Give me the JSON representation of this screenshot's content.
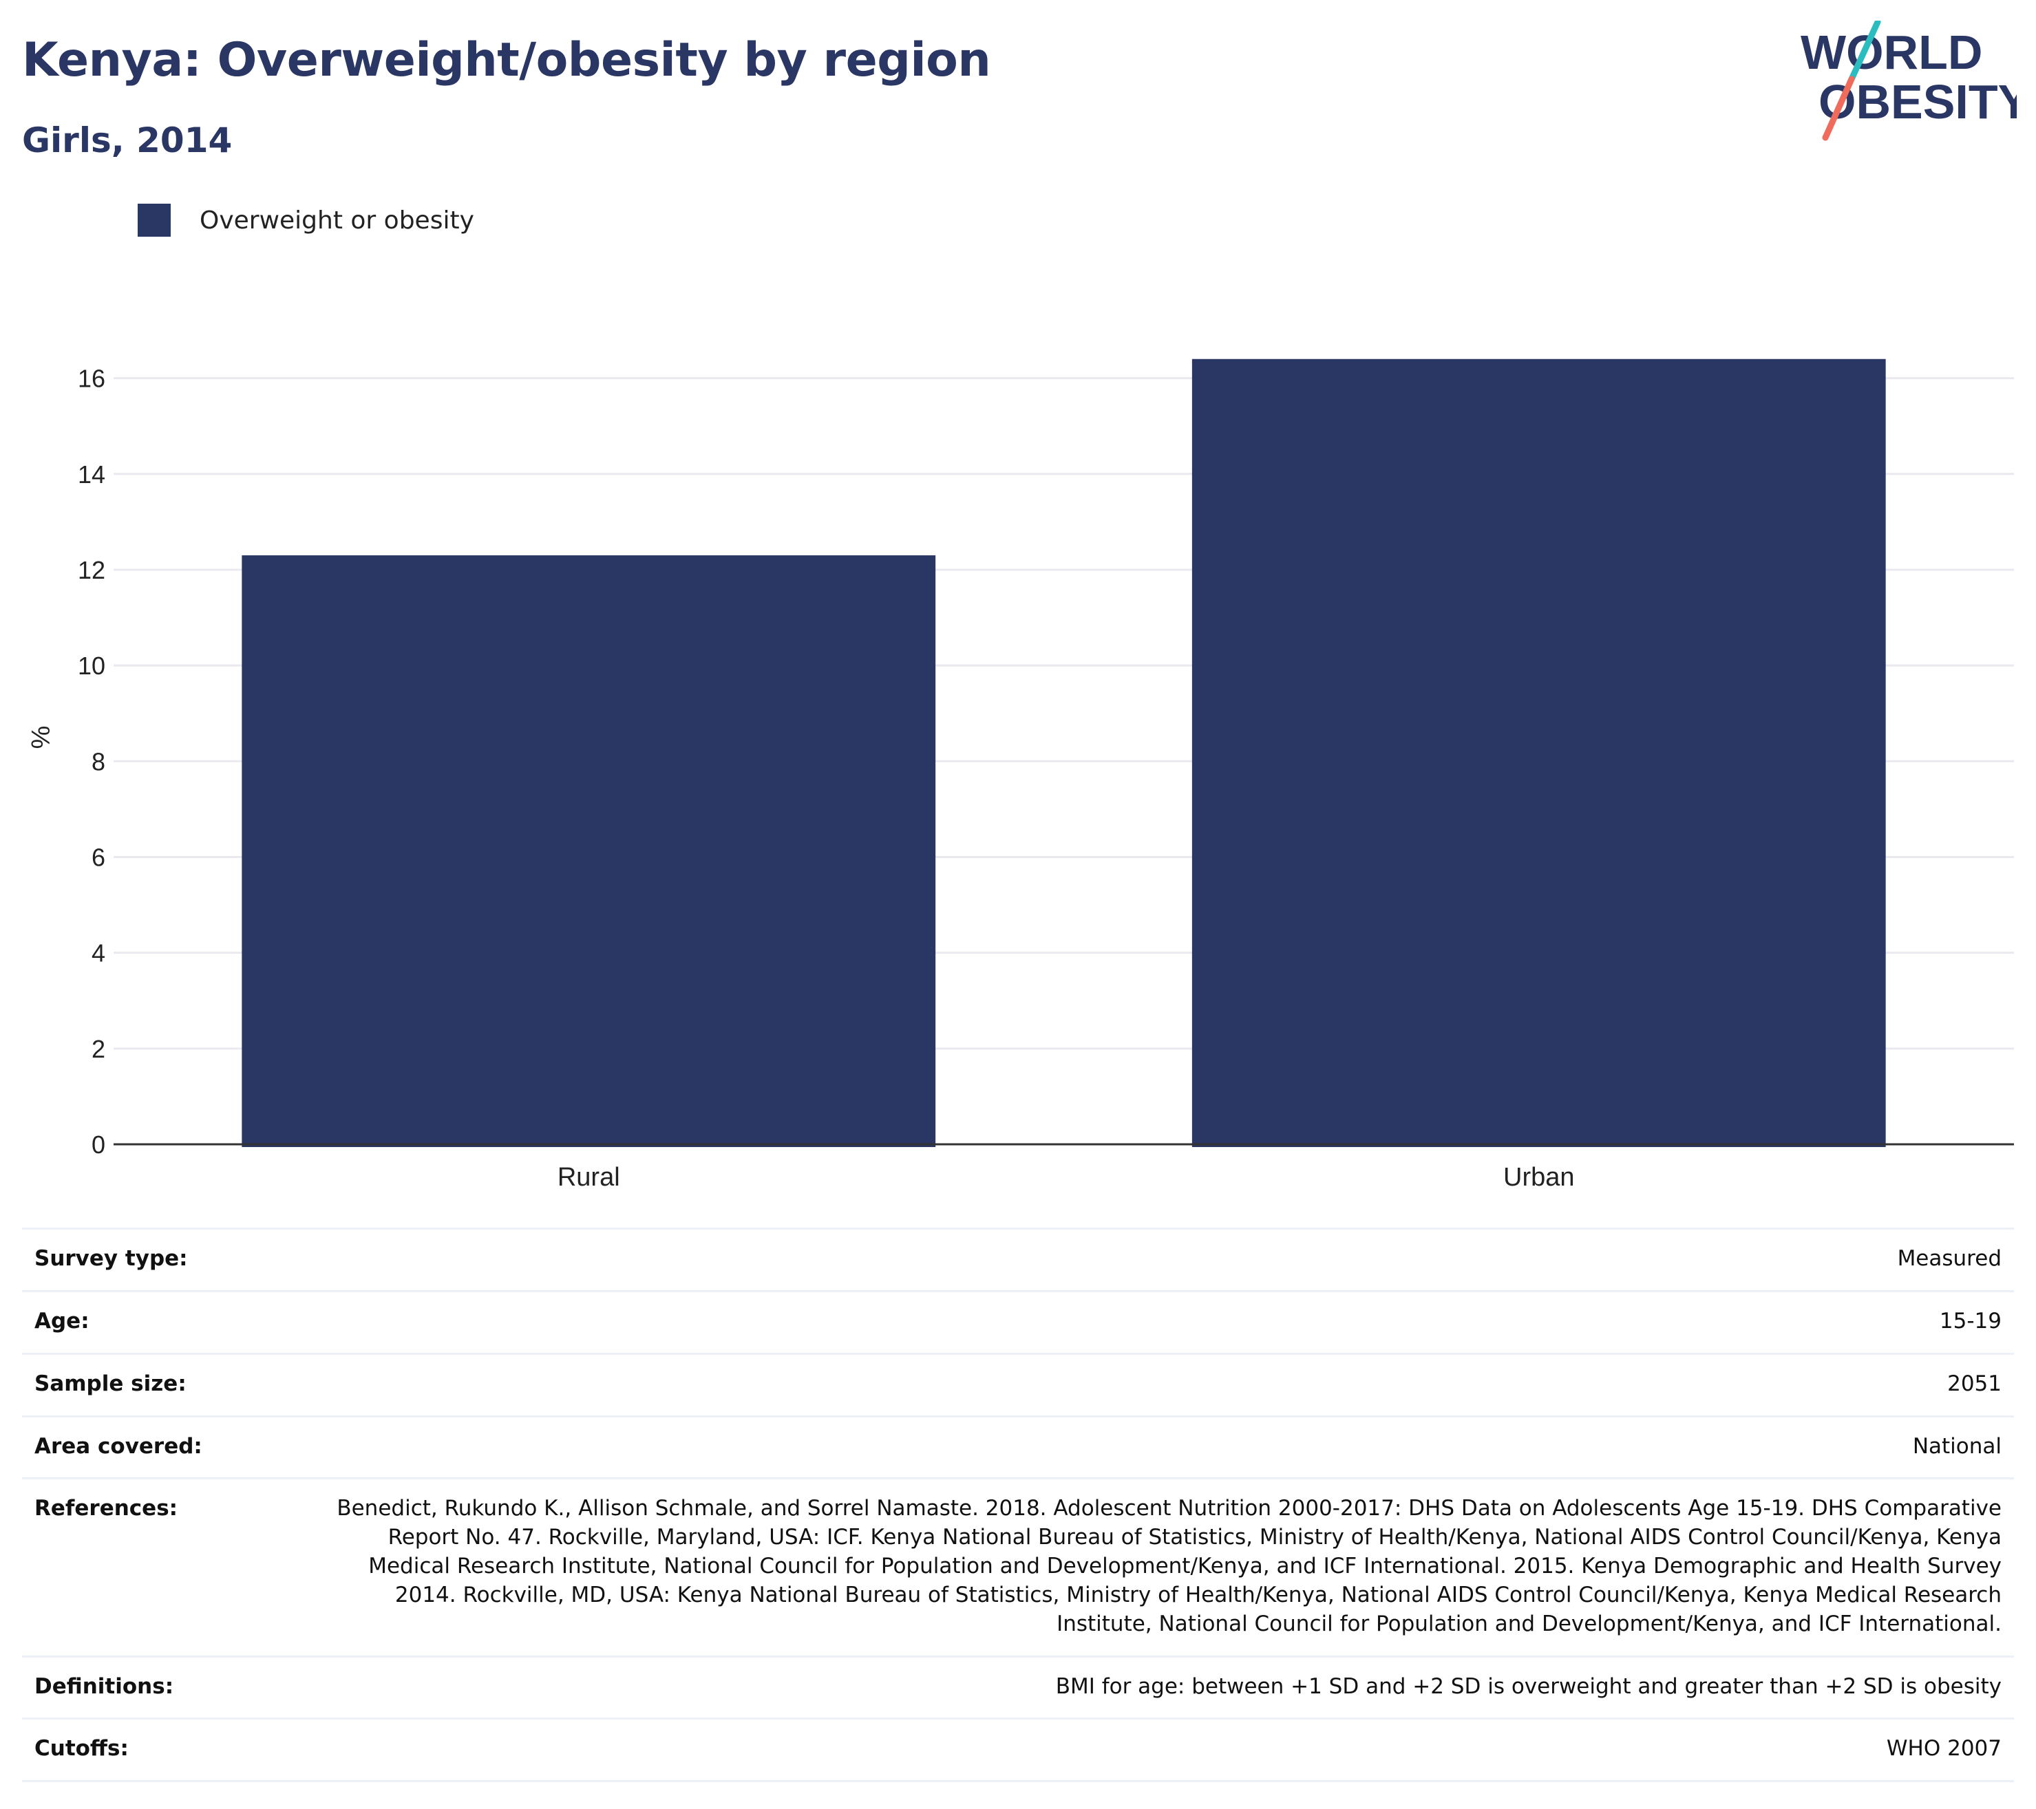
{
  "header": {
    "title": "Kenya: Overweight/obesity by region",
    "subtitle": "Girls, 2014"
  },
  "logo": {
    "line1": "WORLD",
    "line2": "OBESITY",
    "colors": {
      "text": "#2a3663",
      "slash_top": "#2bbcc0",
      "slash_bottom": "#ef6b5b"
    }
  },
  "colors": {
    "bar": "#2a3663",
    "grid": "#e9e9ef",
    "axis": "#333333",
    "title": "#2a3663"
  },
  "legend": {
    "label": "Overweight or obesity",
    "color": "#2a3663"
  },
  "chart_data": {
    "type": "bar",
    "title": "Kenya: Overweight/obesity by region",
    "subtitle": "Girls, 2014",
    "categories": [
      "Rural",
      "Urban"
    ],
    "series": [
      {
        "name": "Overweight or obesity",
        "values": [
          12.3,
          16.4
        ],
        "color": "#2a3663"
      }
    ],
    "ylabel": "%",
    "xlabel": "",
    "ylim": [
      0,
      17
    ],
    "yticks": [
      0,
      2,
      4,
      6,
      8,
      10,
      12,
      14,
      16
    ],
    "grid": true,
    "legend_position": "top-left"
  },
  "info": {
    "rows": [
      {
        "label": "Survey type:",
        "value": "Measured"
      },
      {
        "label": "Age:",
        "value": "15-19"
      },
      {
        "label": "Sample size:",
        "value": "2051"
      },
      {
        "label": "Area covered:",
        "value": "National"
      },
      {
        "label": "References:",
        "value": "Benedict, Rukundo K., Allison Schmale, and Sorrel Namaste. 2018. Adolescent Nutrition 2000-2017: DHS Data on Adolescents Age 15-19. DHS Comparative Report No. 47. Rockville, Maryland, USA: ICF. Kenya National Bureau of Statistics, Ministry of Health/Kenya, National AIDS Control Council/Kenya, Kenya Medical Research Institute, National Council for Population and Development/Kenya, and ICF International. 2015. Kenya Demographic and Health Survey 2014. Rockville, MD, USA: Kenya National Bureau of Statistics, Ministry of Health/Kenya, National AIDS Control Council/Kenya, Kenya Medical Research Institute, National Council for Population and Development/Kenya, and ICF International."
      },
      {
        "label": "Definitions:",
        "value": "BMI for age: between +1 SD and +2 SD is overweight and greater than +2 SD is obesity"
      },
      {
        "label": "Cutoffs:",
        "value": "WHO 2007"
      }
    ]
  }
}
